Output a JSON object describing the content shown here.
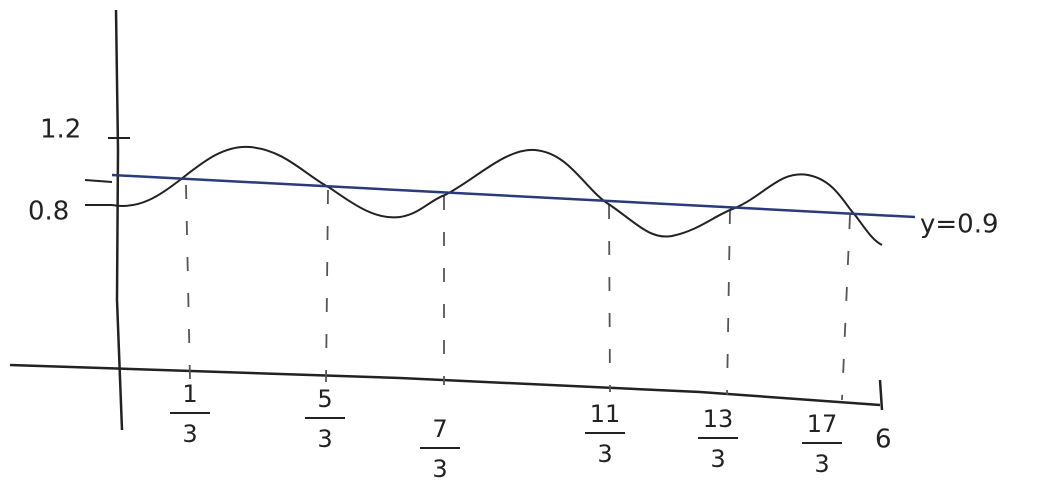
{
  "y_axis_labels": [
    "1.2",
    "0.8"
  ],
  "line_label": "y=0.9",
  "x_axis_labels": [
    {
      "numerator": "1",
      "denominator": "3"
    },
    {
      "numerator": "5",
      "denominator": "3"
    },
    {
      "numerator": "7",
      "denominator": "3"
    },
    {
      "numerator": "11",
      "denominator": "3"
    },
    {
      "numerator": "13",
      "denominator": "3"
    },
    {
      "numerator": "17",
      "denominator": "3"
    }
  ],
  "x_end_label": "6"
}
